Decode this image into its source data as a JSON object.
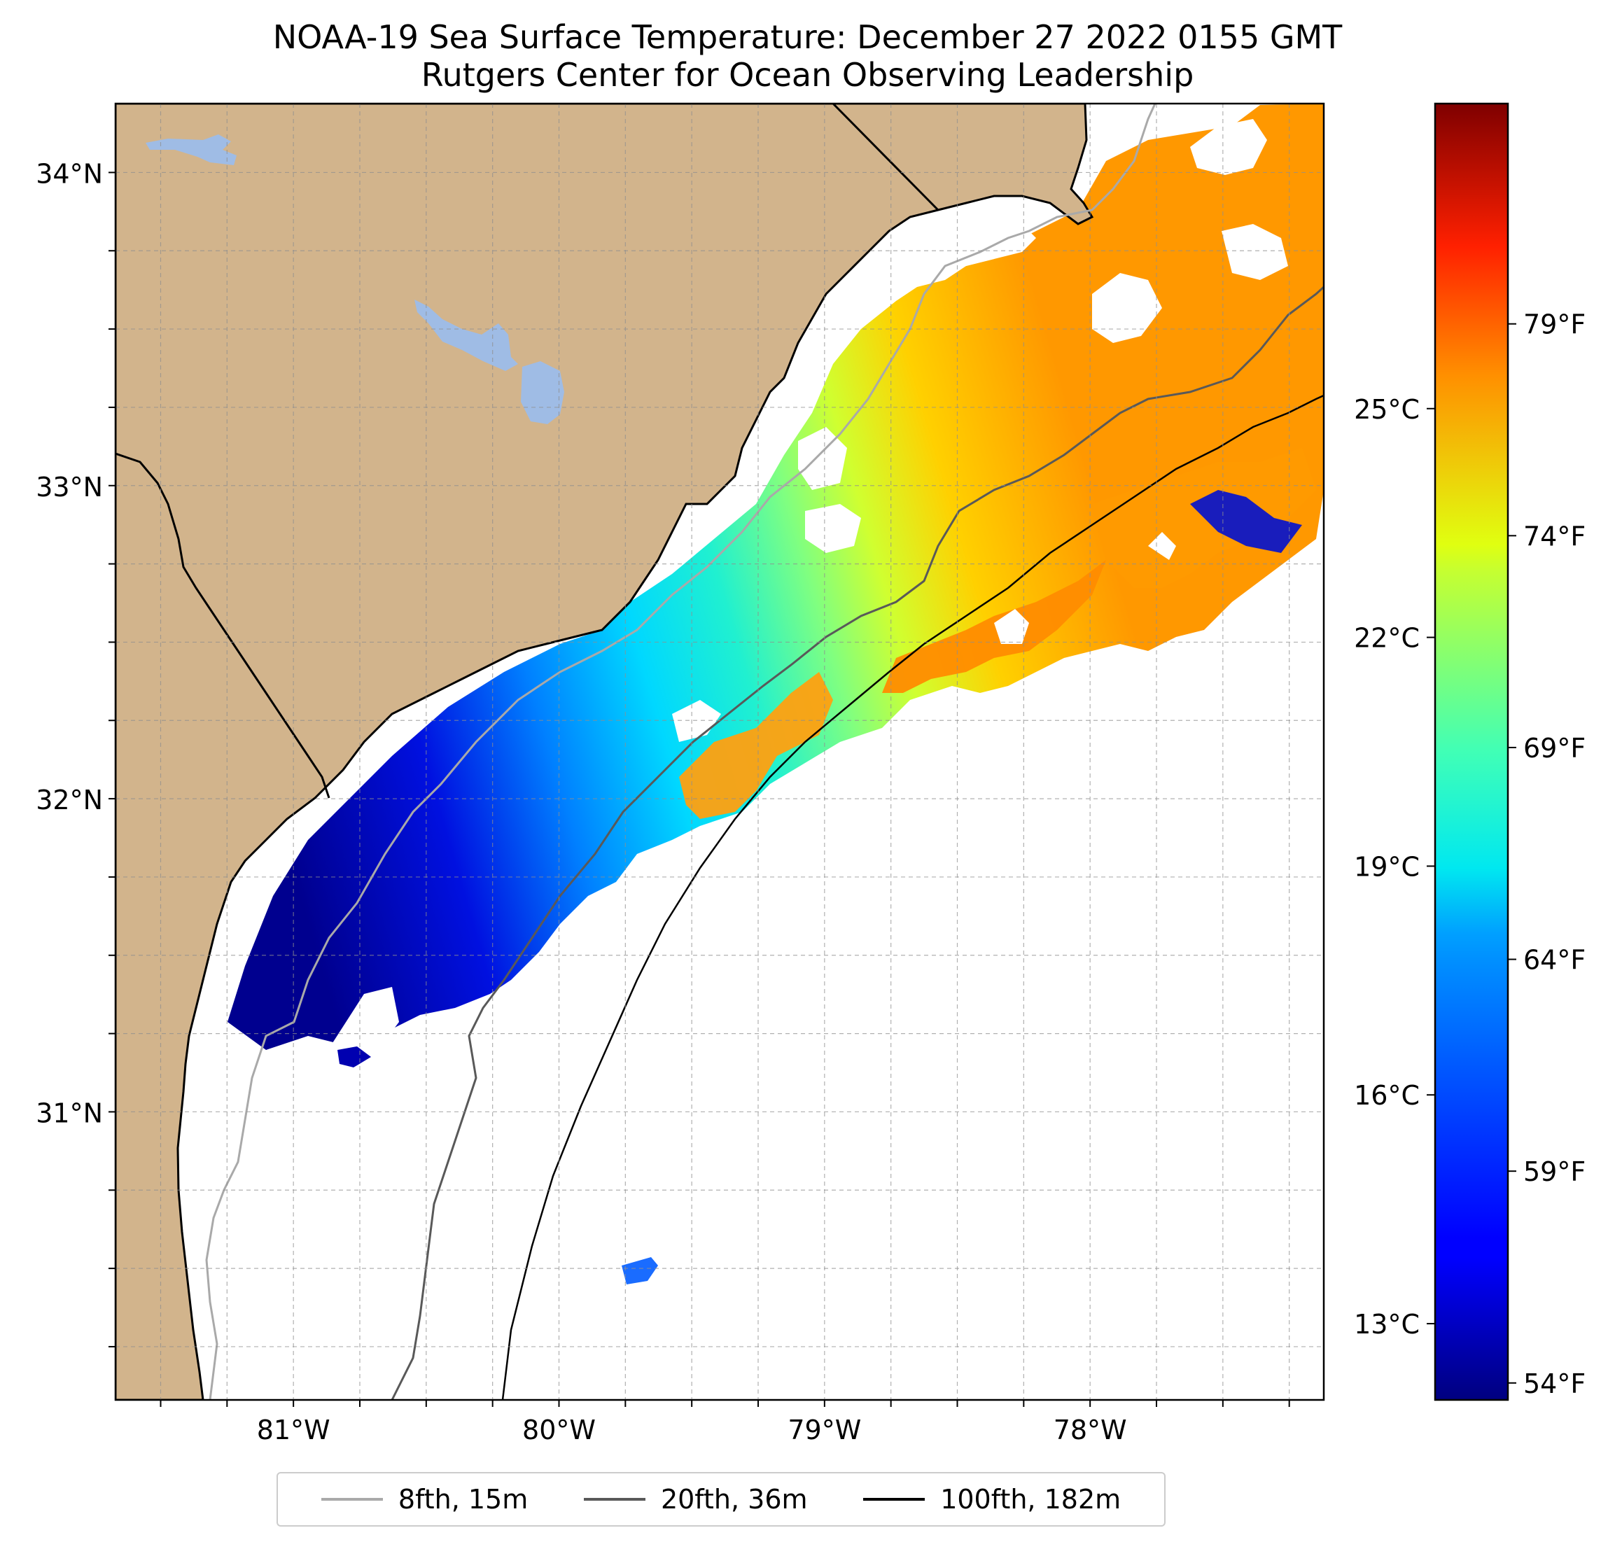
{
  "header": {
    "title": "NOAA-19 Sea Surface Temperature: December 27 2022 0155 GMT",
    "subtitle": "Rutgers Center for Ocean Observing Leadership"
  },
  "map": {
    "lat_labels": [
      "34°N",
      "33°N",
      "32°N",
      "31°N"
    ],
    "lon_labels": [
      "81°W",
      "80°W",
      "79°W",
      "78°W"
    ],
    "lon_range": [
      -81.67,
      -77.12
    ],
    "lat_range": [
      30.08,
      34.22
    ],
    "land_color": "#d2b48c",
    "water_color": "#9fbce5",
    "grid": true
  },
  "colorbar": {
    "colormap": "jet",
    "celsius_labels": [
      "25°C",
      "22°C",
      "19°C",
      "16°C",
      "13°C"
    ],
    "fahrenheit_labels": [
      "79°F",
      "74°F",
      "69°F",
      "64°F",
      "59°F",
      "54°F"
    ],
    "range_f": [
      53.6,
      84.2
    ]
  },
  "legend": {
    "items": [
      {
        "label": "8fth, 15m",
        "color": "#a9a9a9"
      },
      {
        "label": "20fth, 36m",
        "color": "#595959"
      },
      {
        "label": "100fth, 182m",
        "color": "#000000"
      }
    ]
  }
}
